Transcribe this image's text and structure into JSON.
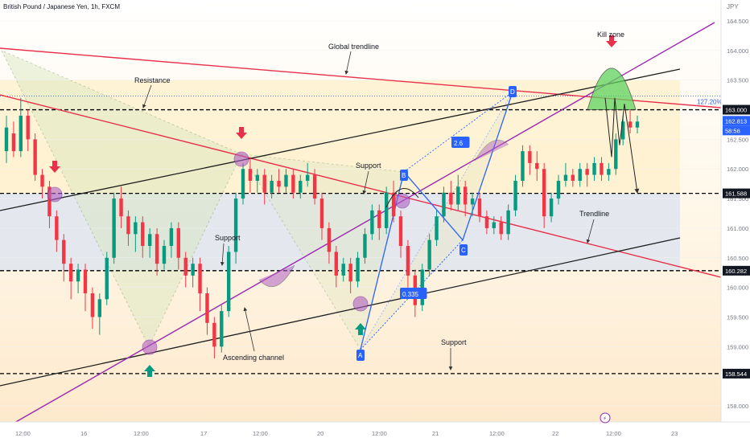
{
  "header": {
    "symbol": "British Pound / Japanese Yen, 1h, FXCM",
    "currency": "JPY"
  },
  "chart_data": {
    "type": "candlestick",
    "y_axis": {
      "ylim": [
        157.6,
        164.75
      ],
      "ticks": [
        158.0,
        158.5,
        159.0,
        159.5,
        160.0,
        160.5,
        161.0,
        161.5,
        162.0,
        162.5,
        163.0,
        163.5,
        164.0,
        164.5
      ]
    },
    "x_axis": {
      "ticks": [
        "12:00",
        "16",
        "12:00",
        "17",
        "12:00",
        "20",
        "12:00",
        "21",
        "12:00",
        "22",
        "12:00",
        "23"
      ]
    },
    "price_labels": [
      {
        "text": "163.000",
        "value": 163.0,
        "style": "dark"
      },
      {
        "text": "162.813",
        "value": 162.813,
        "style": "blue"
      },
      {
        "text": "58:56",
        "value": 162.7,
        "style": "blue"
      },
      {
        "text": "161.588",
        "value": 161.588,
        "style": "dark"
      },
      {
        "text": "160.282",
        "value": 160.282,
        "style": "dark"
      },
      {
        "text": "158.544",
        "value": 158.544,
        "style": "dark"
      }
    ],
    "horizontal_levels": [
      163.0,
      161.588,
      160.282,
      158.544
    ],
    "fib_level": {
      "label": "127.20%",
      "value": 163.23
    },
    "candles": [
      [
        162.3,
        162.7,
        162.9,
        162.1
      ],
      [
        162.6,
        162.3,
        162.8,
        162.2
      ],
      [
        162.3,
        162.9,
        163.2,
        162.2
      ],
      [
        162.9,
        162.5,
        163.0,
        162.3
      ],
      [
        162.5,
        161.9,
        162.6,
        161.8
      ],
      [
        161.9,
        161.7,
        162.0,
        161.5
      ],
      [
        161.7,
        161.2,
        161.8,
        161.0
      ],
      [
        161.2,
        160.8,
        161.3,
        160.6
      ],
      [
        160.8,
        160.4,
        160.9,
        160.1
      ],
      [
        160.4,
        160.1,
        160.5,
        159.8
      ],
      [
        160.1,
        160.3,
        160.4,
        159.9
      ],
      [
        160.3,
        159.9,
        160.4,
        159.6
      ],
      [
        159.9,
        159.5,
        160.0,
        159.3
      ],
      [
        159.5,
        159.8,
        159.9,
        159.2
      ],
      [
        159.8,
        160.5,
        160.6,
        159.7
      ],
      [
        160.5,
        161.5,
        161.6,
        160.4
      ],
      [
        161.5,
        161.2,
        161.7,
        161.0
      ],
      [
        161.2,
        160.9,
        161.3,
        160.7
      ],
      [
        160.9,
        161.1,
        161.2,
        160.6
      ],
      [
        161.1,
        160.7,
        161.2,
        160.5
      ],
      [
        160.7,
        160.9,
        161.0,
        160.5
      ],
      [
        160.9,
        160.4,
        161.0,
        160.2
      ],
      [
        160.4,
        160.7,
        160.8,
        160.3
      ],
      [
        160.7,
        161.0,
        161.1,
        160.5
      ],
      [
        161.0,
        160.5,
        161.1,
        160.3
      ],
      [
        160.5,
        160.2,
        160.6,
        160.0
      ],
      [
        160.2,
        160.4,
        160.5,
        160.0
      ],
      [
        160.4,
        159.9,
        160.5,
        159.6
      ],
      [
        159.9,
        159.4,
        160.0,
        159.2
      ],
      [
        159.4,
        159.0,
        159.5,
        158.8
      ],
      [
        159.0,
        159.6,
        159.7,
        158.9
      ],
      [
        159.6,
        160.6,
        160.7,
        159.5
      ],
      [
        160.6,
        161.5,
        161.6,
        160.4
      ],
      [
        161.5,
        162.0,
        162.1,
        161.4
      ],
      [
        162.0,
        161.8,
        162.2,
        161.6
      ],
      [
        161.8,
        161.9,
        162.0,
        161.6
      ],
      [
        161.9,
        161.6,
        162.0,
        161.4
      ],
      [
        161.6,
        161.8,
        161.9,
        161.5
      ],
      [
        161.8,
        161.7,
        162.0,
        161.6
      ],
      [
        161.7,
        161.9,
        162.0,
        161.6
      ],
      [
        161.9,
        161.6,
        162.0,
        161.5
      ],
      [
        161.6,
        161.8,
        161.9,
        161.5
      ],
      [
        161.8,
        161.9,
        162.1,
        161.7
      ],
      [
        161.9,
        161.5,
        162.0,
        161.4
      ],
      [
        161.5,
        161.0,
        161.6,
        160.8
      ],
      [
        161.0,
        160.6,
        161.1,
        160.4
      ],
      [
        160.6,
        160.2,
        160.7,
        160.0
      ],
      [
        160.2,
        160.4,
        160.5,
        160.1
      ],
      [
        160.4,
        160.1,
        160.5,
        159.9
      ],
      [
        160.1,
        160.5,
        160.6,
        160.0
      ],
      [
        160.5,
        160.9,
        161.0,
        160.4
      ],
      [
        160.9,
        161.3,
        161.4,
        160.8
      ],
      [
        161.3,
        161.0,
        161.4,
        160.8
      ],
      [
        161.0,
        161.6,
        161.7,
        160.9
      ],
      [
        161.6,
        161.2,
        161.8,
        161.1
      ],
      [
        161.2,
        160.7,
        161.3,
        160.5
      ],
      [
        160.7,
        160.2,
        160.8,
        160.0
      ],
      [
        160.2,
        159.7,
        160.3,
        159.5
      ],
      [
        159.7,
        160.3,
        160.4,
        159.6
      ],
      [
        160.3,
        160.8,
        160.9,
        160.2
      ],
      [
        160.8,
        161.2,
        161.3,
        160.7
      ],
      [
        161.2,
        161.6,
        161.7,
        161.1
      ],
      [
        161.6,
        161.4,
        161.8,
        161.3
      ],
      [
        161.4,
        161.7,
        161.9,
        161.3
      ],
      [
        161.7,
        161.4,
        161.8,
        161.2
      ],
      [
        161.4,
        161.5,
        161.6,
        161.2
      ],
      [
        161.5,
        161.2,
        161.6,
        161.1
      ],
      [
        161.2,
        161.0,
        161.3,
        160.9
      ],
      [
        161.0,
        161.1,
        161.2,
        160.9
      ],
      [
        161.1,
        160.9,
        161.2,
        160.8
      ],
      [
        160.9,
        161.3,
        161.4,
        160.8
      ],
      [
        161.3,
        161.8,
        161.9,
        161.2
      ],
      [
        161.8,
        162.3,
        162.4,
        161.7
      ],
      [
        162.3,
        162.1,
        162.4,
        161.9
      ],
      [
        162.1,
        162.0,
        162.3,
        161.8
      ],
      [
        162.0,
        161.2,
        162.1,
        161.0
      ],
      [
        161.2,
        161.5,
        161.6,
        161.1
      ],
      [
        161.5,
        161.8,
        161.9,
        161.4
      ],
      [
        161.8,
        161.9,
        162.1,
        161.7
      ],
      [
        161.9,
        161.8,
        162.0,
        161.7
      ],
      [
        161.8,
        162.0,
        162.1,
        161.7
      ],
      [
        162.0,
        161.9,
        162.1,
        161.7
      ],
      [
        161.9,
        162.1,
        162.2,
        161.8
      ],
      [
        162.1,
        161.9,
        162.2,
        161.8
      ],
      [
        161.9,
        162.0,
        162.1,
        161.8
      ],
      [
        162.0,
        162.5,
        162.6,
        161.9
      ],
      [
        162.5,
        162.8,
        162.9,
        162.4
      ],
      [
        162.8,
        162.7,
        163.0,
        162.6
      ],
      [
        162.7,
        162.8,
        162.9,
        162.6
      ]
    ],
    "annotations": [
      {
        "text": "Global trendline",
        "price": 164.1
      },
      {
        "text": "Resistance",
        "price": 163.5
      },
      {
        "text": "Kill zone",
        "price": 164.3
      },
      {
        "text": "Support",
        "price": 162.05
      },
      {
        "text": "Support",
        "price": 160.9
      },
      {
        "text": "Trendline",
        "price": 161.25
      },
      {
        "text": "Ascending channel",
        "price": 158.85
      },
      {
        "text": "Support",
        "price": 159.1
      }
    ],
    "pattern_points": [
      {
        "label": "A",
        "price": 158.95
      },
      {
        "label": "B",
        "price": 161.95
      },
      {
        "label": "C",
        "price": 160.8
      },
      {
        "label": "D",
        "price": 163.3
      }
    ],
    "ratios": [
      {
        "text": "2.6",
        "price": 162.5
      },
      {
        "text": "0.335",
        "price": 159.85
      }
    ]
  },
  "colors": {
    "bull": "#089981",
    "bear": "#f23645",
    "trend_red": "#e8304a",
    "channel": "#1e1e1e",
    "purple": "#9c27b0",
    "pattern_blue": "#2962ff",
    "label_dark": "#131722",
    "label_blue": "#2962ff",
    "marker_red": "#e8304a",
    "marker_green": "#089981"
  }
}
